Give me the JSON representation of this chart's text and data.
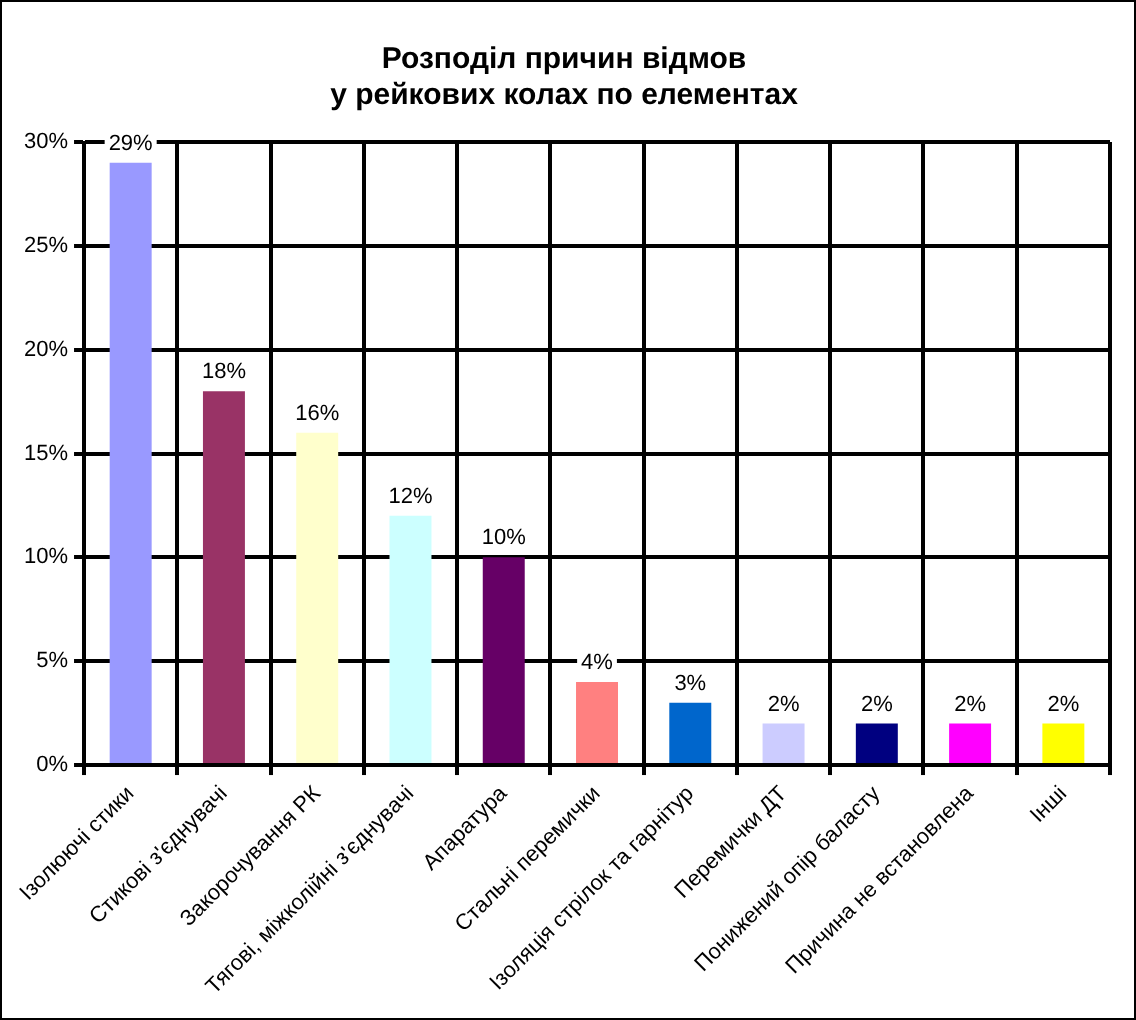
{
  "chart_data": {
    "type": "bar",
    "title": "Розподіл причин відмов\nу рейкових колах по елементах",
    "categories": [
      "Ізолюючі стики",
      "Стикові з'єднувачі",
      "Закорочування РК",
      "Тягові, міжколійні з'єднувачі",
      "Апаратура",
      "Стальні перемички",
      "Ізоляція стрілок та гарнітур",
      "Перемички ДТ",
      "Понижений опір баласту",
      "Причина не встановлена",
      "Інші"
    ],
    "values": [
      29,
      18,
      16,
      12,
      10,
      4,
      3,
      2,
      2,
      2,
      2
    ],
    "colors": [
      "#9999ff",
      "#993366",
      "#ffffcc",
      "#ccffff",
      "#660066",
      "#ff8080",
      "#0066cc",
      "#ccccff",
      "#000080",
      "#ff00ff",
      "#ffff00"
    ],
    "value_labels": [
      "29%",
      "18%",
      "16%",
      "12%",
      "10%",
      "4%",
      "3%",
      "2%",
      "2%",
      "2%",
      "2%"
    ],
    "ylim": [
      0,
      30
    ],
    "yticks": [
      {
        "value": 0,
        "label": "0%"
      },
      {
        "value": 5,
        "label": "5%"
      },
      {
        "value": 10,
        "label": "10%"
      },
      {
        "value": 15,
        "label": "15%"
      },
      {
        "value": 20,
        "label": "20%"
      },
      {
        "value": 25,
        "label": "25%"
      },
      {
        "value": 30,
        "label": "30%"
      }
    ],
    "grid": true,
    "legend": false
  }
}
